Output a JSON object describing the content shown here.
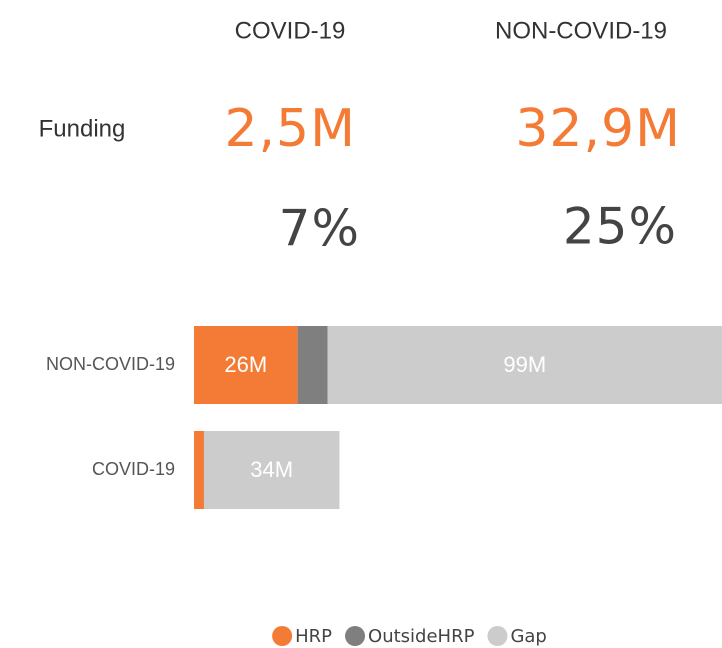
{
  "kpis": {
    "row_label": "Funding",
    "columns": [
      {
        "header": "COVID-19",
        "amount": "2,5M",
        "percent": "7%"
      },
      {
        "header": "NON-COVID-19",
        "amount": "32,9M",
        "percent": "25%"
      }
    ]
  },
  "chart_data": {
    "type": "stacked-bar-horizontal",
    "categories": [
      "NON-COVID-19",
      "COVID-19"
    ],
    "series": [
      {
        "name": "HRP",
        "color": "#f47b35",
        "values": [
          26,
          2.5
        ],
        "value_labels": [
          "26M",
          null
        ]
      },
      {
        "name": "OutsideHRP",
        "color": "#7f7f7f",
        "values": [
          7.5,
          0
        ]
      },
      {
        "name": "Gap",
        "color": "#cccccc",
        "values": [
          99,
          34
        ],
        "value_labels": [
          "99M",
          "34M"
        ]
      }
    ]
  }
}
